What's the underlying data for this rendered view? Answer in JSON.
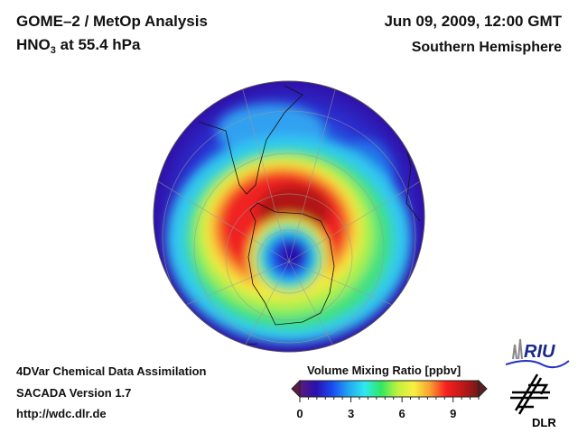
{
  "header": {
    "title_line1": "GOME–2 / MetOp Analysis",
    "species_prefix": "HNO",
    "species_subscript": "3",
    "species_suffix": " at 55.4 hPa",
    "datetime": "Jun 09, 2009, 12:00 GMT",
    "region": "Southern Hemisphere"
  },
  "footer": {
    "line1": "4DVar Chemical Data Assimilation",
    "line2": "SACADA Version 1.7",
    "line3": "http://wdc.dlr.de"
  },
  "colorbar": {
    "title": "Volume Mixing Ratio [ppbv]",
    "min": 0,
    "max": 10.5,
    "ticks": [
      "0",
      "3",
      "6",
      "9"
    ],
    "tick_values": [
      0,
      3,
      6,
      9
    ],
    "colors": [
      "#5a1a7a",
      "#2a10b0",
      "#1a4cf0",
      "#22a8f0",
      "#30e8f0",
      "#30e860",
      "#c0f040",
      "#f8f040",
      "#f8a030",
      "#f82020",
      "#c01818",
      "#701818"
    ]
  },
  "map": {
    "projection": "orthographic, south pole centered",
    "polar_vortex_core_ppbv": 1,
    "collar_max_ppbv": 10
  },
  "logos": {
    "riu_label": "RIU",
    "dlr_label": "DLR"
  }
}
